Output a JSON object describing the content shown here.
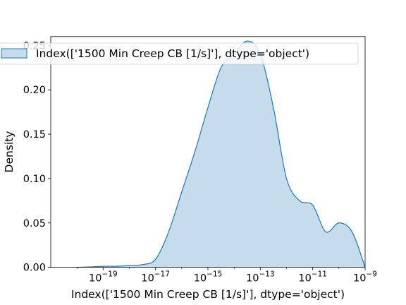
{
  "chart_data": {
    "type": "area",
    "title": "",
    "xlabel": "Index(['1500 Min Creep CB [1/s]'], dtype='object')",
    "ylabel": "Density",
    "x_scale": "log",
    "xlim": [
      1e-21,
      1e-09
    ],
    "ylim": [
      0,
      0.26
    ],
    "x_ticks": [
      {
        "value": 1e-19,
        "base": "10",
        "exp": "−19"
      },
      {
        "value": 1e-17,
        "base": "10",
        "exp": "−17"
      },
      {
        "value": 1e-15,
        "base": "10",
        "exp": "−15"
      },
      {
        "value": 1e-13,
        "base": "10",
        "exp": "−13"
      },
      {
        "value": 1e-11,
        "base": "10",
        "exp": "−11"
      },
      {
        "value": 1e-09,
        "base": "10",
        "exp": "−9"
      }
    ],
    "y_ticks": [
      {
        "value": 0.0,
        "label": "0.00"
      },
      {
        "value": 0.05,
        "label": "0.05"
      },
      {
        "value": 0.1,
        "label": "0.10"
      },
      {
        "value": 0.15,
        "label": "0.15"
      },
      {
        "value": 0.2,
        "label": "0.20"
      },
      {
        "value": 0.25,
        "label": "0.25"
      }
    ],
    "grid": false,
    "legend": {
      "position": "upper-left",
      "entries": [
        "Index(['1500 Min Creep CB [1/s]'], dtype='object')"
      ]
    },
    "series": [
      {
        "name": "Index(['1500 Min Creep CB [1/s]'], dtype='object')",
        "color": "#1f77b4",
        "fill_color": "#c6dbec",
        "x": [
          1e-20,
          3.16e-20,
          1e-19,
          3.16e-19,
          1e-18,
          3.16e-18,
          1e-17,
          3.16e-17,
          1e-16,
          3.16e-16,
          1e-15,
          3.16e-15,
          1e-14,
          3.16e-14,
          1e-13,
          3.16e-13,
          1e-12,
          3.16e-12,
          1e-11,
          3.16e-11,
          1e-10,
          3.16e-10,
          1e-09
        ],
        "y": [
          0.0,
          0.0005,
          0.0012,
          0.0012,
          0.002,
          0.003,
          0.009,
          0.04,
          0.085,
          0.13,
          0.18,
          0.225,
          0.24,
          0.255,
          0.24,
          0.18,
          0.1,
          0.075,
          0.07,
          0.04,
          0.05,
          0.04,
          0.0
        ]
      }
    ]
  }
}
